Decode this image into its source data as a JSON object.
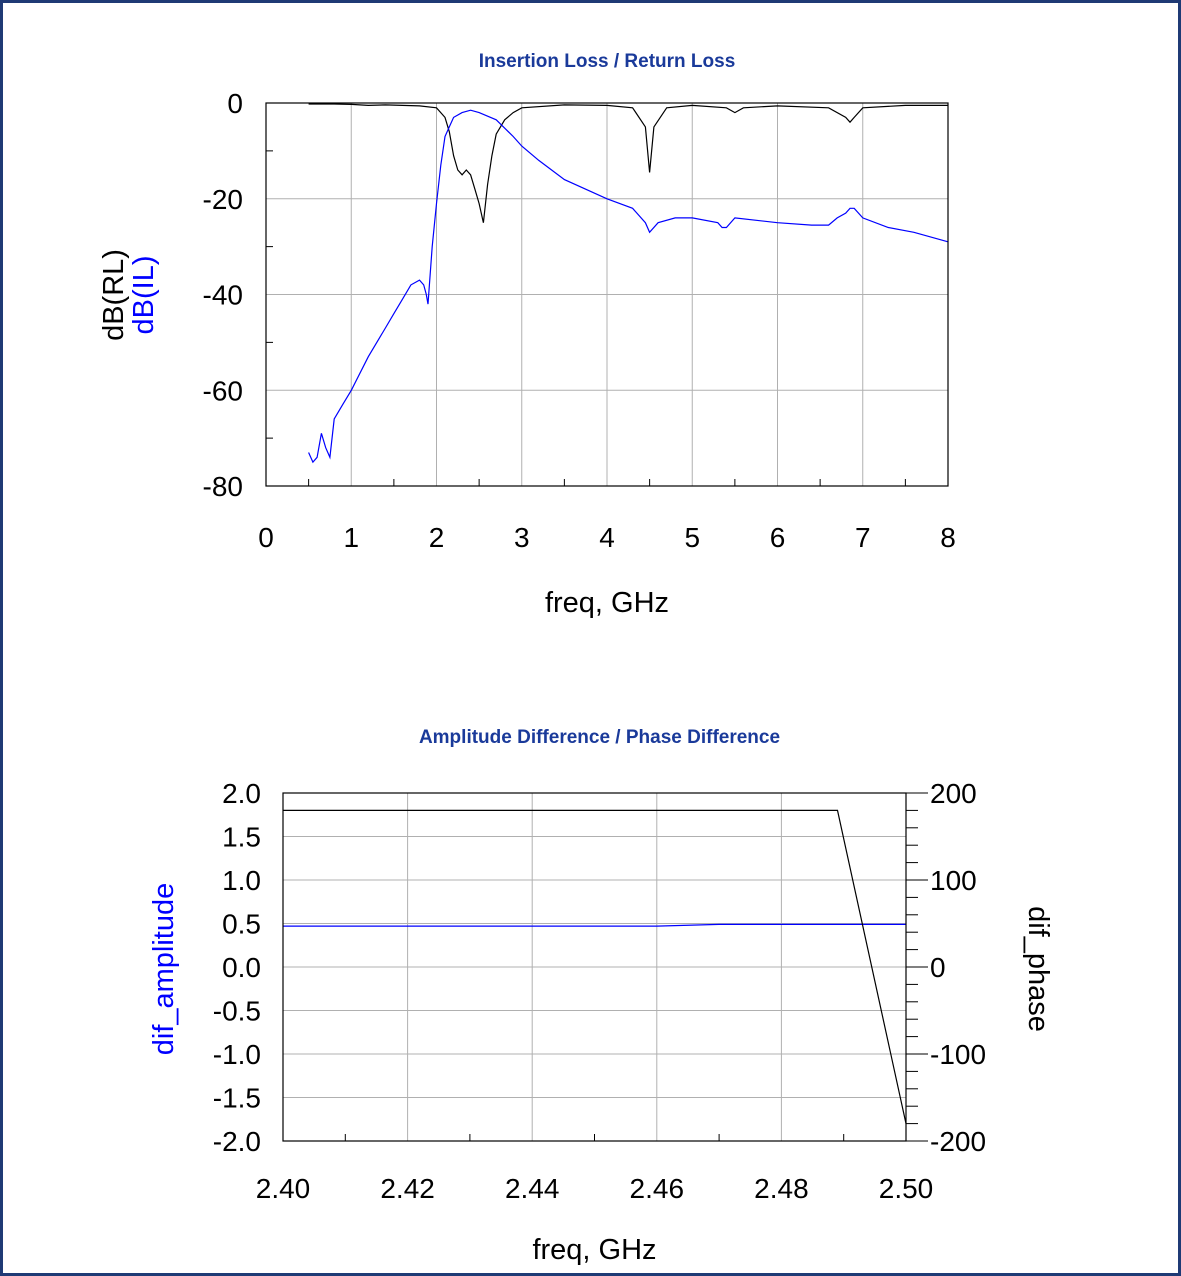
{
  "colors": {
    "frame": "#1f3a75",
    "title": "#1a3a9a",
    "black_series": "#000000",
    "blue_series": "#0000ff",
    "grid": "#b0b0b0"
  },
  "chart_data": [
    {
      "type": "line",
      "title": "Insertion Loss / Return Loss",
      "xlabel": "freq, GHz",
      "ylabel": [
        "dB(RL)",
        "dB(IL)"
      ],
      "xlim": [
        0,
        8
      ],
      "ylim": [
        -80,
        0
      ],
      "xticks": [
        "0",
        "1",
        "2",
        "3",
        "4",
        "5",
        "6",
        "7",
        "8"
      ],
      "yticks": [
        "0",
        "-20",
        "-40",
        "-60",
        "-80"
      ],
      "grid": true,
      "series": [
        {
          "name": "dB(RL)",
          "color": "#000000",
          "x": [
            0.5,
            0.8,
            1.0,
            1.2,
            1.4,
            1.6,
            1.8,
            2.0,
            2.1,
            2.15,
            2.2,
            2.25,
            2.3,
            2.35,
            2.4,
            2.45,
            2.5,
            2.55,
            2.6,
            2.65,
            2.7,
            2.8,
            2.9,
            3.0,
            3.5,
            4.0,
            4.3,
            4.45,
            4.5,
            4.55,
            4.7,
            5.0,
            5.4,
            5.5,
            5.6,
            6.0,
            6.6,
            6.8,
            6.85,
            6.9,
            7.0,
            7.5,
            8.0
          ],
          "y": [
            -0.2,
            -0.2,
            -0.3,
            -0.5,
            -0.4,
            -0.5,
            -0.6,
            -1.0,
            -3.0,
            -6.0,
            -11.0,
            -14.0,
            -15.0,
            -14.0,
            -15.0,
            -18.0,
            -21.0,
            -25.0,
            -17.0,
            -11.0,
            -6.5,
            -3.5,
            -2.0,
            -1.0,
            -0.4,
            -0.5,
            -1.0,
            -5.0,
            -14.5,
            -5.0,
            -1.0,
            -0.5,
            -1.0,
            -2.0,
            -1.0,
            -0.6,
            -1.0,
            -3.0,
            -4.0,
            -3.0,
            -1.0,
            -0.5,
            -0.5
          ]
        },
        {
          "name": "dB(IL)",
          "color": "#0000ff",
          "x": [
            0.5,
            0.55,
            0.6,
            0.65,
            0.7,
            0.75,
            0.8,
            0.9,
            1.0,
            1.2,
            1.4,
            1.5,
            1.6,
            1.7,
            1.8,
            1.85,
            1.88,
            1.9,
            1.95,
            2.0,
            2.05,
            2.1,
            2.15,
            2.2,
            2.3,
            2.4,
            2.5,
            2.7,
            2.9,
            3.0,
            3.2,
            3.5,
            4.0,
            4.3,
            4.45,
            4.5,
            4.6,
            4.8,
            5.0,
            5.3,
            5.35,
            5.4,
            5.5,
            6.0,
            6.4,
            6.6,
            6.7,
            6.8,
            6.85,
            6.9,
            7.0,
            7.3,
            7.6,
            8.0
          ],
          "y": [
            -73,
            -75,
            -74,
            -69,
            -72,
            -74,
            -66,
            -63,
            -60,
            -53,
            -47,
            -44,
            -41,
            -38,
            -37,
            -38,
            -40,
            -42,
            -30,
            -21,
            -13,
            -7,
            -5,
            -3,
            -2,
            -1.5,
            -2,
            -3.5,
            -7,
            -9,
            -12,
            -16,
            -20,
            -22,
            -25,
            -27,
            -25,
            -24,
            -24,
            -25,
            -26,
            -26,
            -24,
            -25,
            -25.5,
            -25.5,
            -24,
            -23,
            -22,
            -22,
            -24,
            -26,
            -27,
            -29
          ]
        }
      ]
    },
    {
      "type": "line",
      "title": "Amplitude Difference / Phase Difference",
      "xlabel": "freq, GHz",
      "ylabel": "dif_amplitude",
      "y2label": "dif_phase",
      "xlim": [
        2.4,
        2.5
      ],
      "ylim": [
        -2.0,
        2.0
      ],
      "y2lim": [
        -200,
        200
      ],
      "xticks": [
        "2.40",
        "2.42",
        "2.44",
        "2.46",
        "2.48",
        "2.50"
      ],
      "yticks": [
        "2.0",
        "1.5",
        "1.0",
        "0.5",
        "0.0",
        "-0.5",
        "-1.0",
        "-1.5",
        "-2.0"
      ],
      "y2ticks": [
        "200",
        "100",
        "0",
        "-100",
        "-200"
      ],
      "grid": true,
      "series": [
        {
          "name": "dif_amplitude",
          "axis": "left",
          "color": "#0000ff",
          "x": [
            2.4,
            2.46,
            2.47,
            2.5
          ],
          "y": [
            0.47,
            0.47,
            0.49,
            0.49
          ]
        },
        {
          "name": "dif_phase",
          "axis": "right",
          "color": "#000000",
          "x": [
            2.4,
            2.489,
            2.5
          ],
          "y": [
            180,
            180,
            -180
          ]
        }
      ]
    }
  ]
}
